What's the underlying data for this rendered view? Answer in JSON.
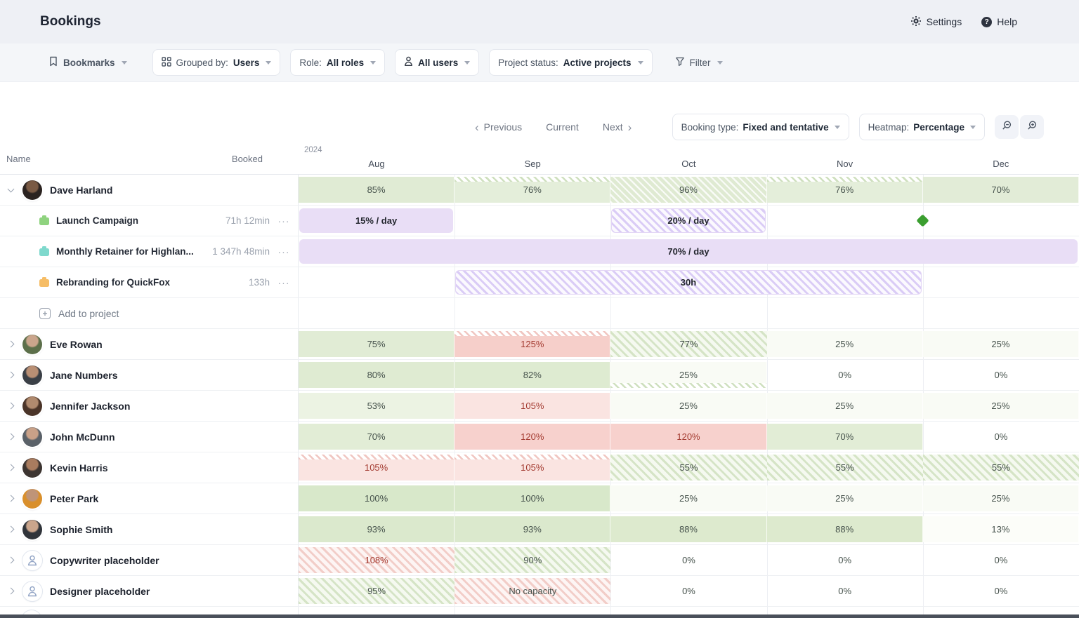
{
  "topbar": {
    "title": "Bookings",
    "settings": "Settings",
    "help": "Help"
  },
  "filterbar": {
    "bookmarks": "Bookmarks",
    "grouped_by_label": "Grouped by:",
    "grouped_by_value": "Users",
    "role_label": "Role:",
    "role_value": "All roles",
    "all_users": "All users",
    "project_status_label": "Project status:",
    "project_status_value": "Active projects",
    "filter": "Filter"
  },
  "controls": {
    "previous": "Previous",
    "current": "Current",
    "next": "Next",
    "booking_type_label": "Booking type:",
    "booking_type_value": "Fixed and tentative",
    "heatmap_label": "Heatmap:",
    "heatmap_value": "Percentage",
    "zoom_out_icon": "magnifier-minus",
    "zoom_in_icon": "magnifier-plus"
  },
  "grid": {
    "name_header": "Name",
    "booked_header": "Booked",
    "year": "2024",
    "months": [
      "Aug",
      "Sep",
      "Oct",
      "Nov",
      "Dec"
    ]
  },
  "colors": {
    "milestone_green": "#3a9e2f",
    "bar_solid_purple": "#e9def6",
    "heat_text_dark": "#45514b",
    "heat_text_red": "#a33a30"
  },
  "rows": [
    {
      "type": "user",
      "name": "Dave Harland",
      "expanded": true,
      "avatar": [
        "#7a5a44",
        "#2b2320"
      ],
      "cells": [
        {
          "label": "85%",
          "bg": "#e0ebd4",
          "fg": "dark"
        },
        {
          "label": "76%",
          "bg": "#e4eeda",
          "fg": "dark",
          "strip": "top",
          "strip_color": "green"
        },
        {
          "label": "96%",
          "bg": "#dfead2",
          "fg": "dark",
          "hatch": "overlay"
        },
        {
          "label": "76%",
          "bg": "#e4eeda",
          "fg": "dark",
          "strip": "top",
          "strip_color": "green"
        },
        {
          "label": "70%",
          "bg": "#e2ecd7",
          "fg": "dark"
        }
      ]
    },
    {
      "type": "project",
      "name": "Launch Campaign",
      "icon": "#8fd37f",
      "booked": "71h 12min",
      "bars": [
        {
          "from": 0,
          "to": 1,
          "style": "solid",
          "label": "15% / day"
        },
        {
          "from": 2,
          "to": 3,
          "style": "hatch",
          "label": "20% / day"
        }
      ],
      "milestone_at": 4
    },
    {
      "type": "project",
      "name": "Monthly Retainer for Highlan...",
      "icon": "#7fd9cd",
      "booked": "1 347h 48min",
      "bars": [
        {
          "from": 0,
          "to": 5,
          "style": "solid",
          "label": "70% / day"
        }
      ]
    },
    {
      "type": "project",
      "name": "Rebranding for QuickFox",
      "icon": "#f6bd66",
      "booked": "133h",
      "bars": [
        {
          "from": 1,
          "to": 4,
          "style": "hatch",
          "label": "30h"
        }
      ]
    },
    {
      "type": "add",
      "label": "Add to project"
    },
    {
      "type": "user",
      "name": "Eve Rowan",
      "avatar": [
        "#caa58c",
        "#5c6f4a"
      ],
      "cells": [
        {
          "label": "75%",
          "bg": "#e1ecd5",
          "fg": "dark"
        },
        {
          "label": "125%",
          "bg": "#f6cfca",
          "fg": "red",
          "strip": "top",
          "strip_color": "red"
        },
        {
          "label": "77%",
          "fg": "dark",
          "hatch": "green"
        },
        {
          "label": "25%",
          "bg": "#f9fbf5",
          "fg": "dark"
        },
        {
          "label": "25%",
          "bg": "#f9fbf5",
          "fg": "dark"
        }
      ]
    },
    {
      "type": "user",
      "name": "Jane Numbers",
      "avatar": [
        "#b98f74",
        "#3a3f46"
      ],
      "cells": [
        {
          "label": "80%",
          "bg": "#dfebd2",
          "fg": "dark"
        },
        {
          "label": "82%",
          "bg": "#deebd1",
          "fg": "dark"
        },
        {
          "label": "25%",
          "bg": "#f9fbf5",
          "fg": "dark",
          "strip": "bottom",
          "strip_color": "green"
        },
        {
          "label": "0%",
          "fg": "dark"
        },
        {
          "label": "0%",
          "fg": "dark"
        }
      ]
    },
    {
      "type": "user",
      "name": "Jennifer Jackson",
      "avatar": [
        "#b08a6e",
        "#4a3428"
      ],
      "cells": [
        {
          "label": "53%",
          "bg": "#ecf3e3",
          "fg": "dark"
        },
        {
          "label": "105%",
          "bg": "#fae4e1",
          "fg": "red"
        },
        {
          "label": "25%",
          "bg": "#f9fbf5",
          "fg": "dark"
        },
        {
          "label": "25%",
          "bg": "#f9fbf5",
          "fg": "dark"
        },
        {
          "label": "25%",
          "bg": "#f9fbf5",
          "fg": "dark"
        }
      ]
    },
    {
      "type": "user",
      "name": "John McDunn",
      "avatar": [
        "#c9a188",
        "#5a6168"
      ],
      "cells": [
        {
          "label": "70%",
          "bg": "#e2edd6",
          "fg": "dark"
        },
        {
          "label": "120%",
          "bg": "#f7d1cd",
          "fg": "red"
        },
        {
          "label": "120%",
          "bg": "#f7d1cd",
          "fg": "red"
        },
        {
          "label": "70%",
          "bg": "#e2edd6",
          "fg": "dark"
        },
        {
          "label": "0%",
          "fg": "dark"
        }
      ]
    },
    {
      "type": "user",
      "name": "Kevin Harris",
      "avatar": [
        "#a97c5f",
        "#3c3430"
      ],
      "cells": [
        {
          "label": "105%",
          "bg": "#fae4e1",
          "fg": "red",
          "strip": "top",
          "strip_color": "red"
        },
        {
          "label": "105%",
          "bg": "#fae4e1",
          "fg": "red",
          "strip": "top",
          "strip_color": "red"
        },
        {
          "label": "55%",
          "fg": "dark",
          "hatch": "green"
        },
        {
          "label": "55%",
          "fg": "dark",
          "hatch": "green"
        },
        {
          "label": "55%",
          "fg": "dark",
          "hatch": "green"
        }
      ]
    },
    {
      "type": "user",
      "name": "Peter Park",
      "avatar": [
        "#bf9478",
        "#d98f2b"
      ],
      "cells": [
        {
          "label": "100%",
          "bg": "#d8e8ca",
          "fg": "dark"
        },
        {
          "label": "100%",
          "bg": "#d8e8ca",
          "fg": "dark"
        },
        {
          "label": "25%",
          "bg": "#f9fbf5",
          "fg": "dark"
        },
        {
          "label": "25%",
          "bg": "#f9fbf5",
          "fg": "dark"
        },
        {
          "label": "25%",
          "bg": "#f9fbf5",
          "fg": "dark"
        }
      ]
    },
    {
      "type": "user",
      "name": "Sophie Smith",
      "avatar": [
        "#caa58c",
        "#30343a"
      ],
      "cells": [
        {
          "label": "93%",
          "bg": "#dbe9cd",
          "fg": "dark"
        },
        {
          "label": "93%",
          "bg": "#dbe9cd",
          "fg": "dark"
        },
        {
          "label": "88%",
          "bg": "#ddeace",
          "fg": "dark"
        },
        {
          "label": "88%",
          "bg": "#ddeace",
          "fg": "dark"
        },
        {
          "label": "13%",
          "bg": "#fcfdf9",
          "fg": "dark"
        }
      ]
    },
    {
      "type": "user",
      "name": "Copywriter placeholder",
      "placeholder": true,
      "cells": [
        {
          "label": "108%",
          "fg": "red",
          "hatch": "red"
        },
        {
          "label": "90%",
          "fg": "dark",
          "hatch": "green"
        },
        {
          "label": "0%",
          "fg": "dark"
        },
        {
          "label": "0%",
          "fg": "dark"
        },
        {
          "label": "0%",
          "fg": "dark"
        }
      ]
    },
    {
      "type": "user",
      "name": "Designer placeholder",
      "placeholder": true,
      "cells": [
        {
          "label": "95%",
          "fg": "dark",
          "hatch": "green"
        },
        {
          "label": "No capacity",
          "fg": "dark",
          "hatch": "red"
        },
        {
          "label": "0%",
          "fg": "dark"
        },
        {
          "label": "0%",
          "fg": "dark"
        },
        {
          "label": "0%",
          "fg": "dark"
        }
      ]
    },
    {
      "type": "partial"
    }
  ]
}
